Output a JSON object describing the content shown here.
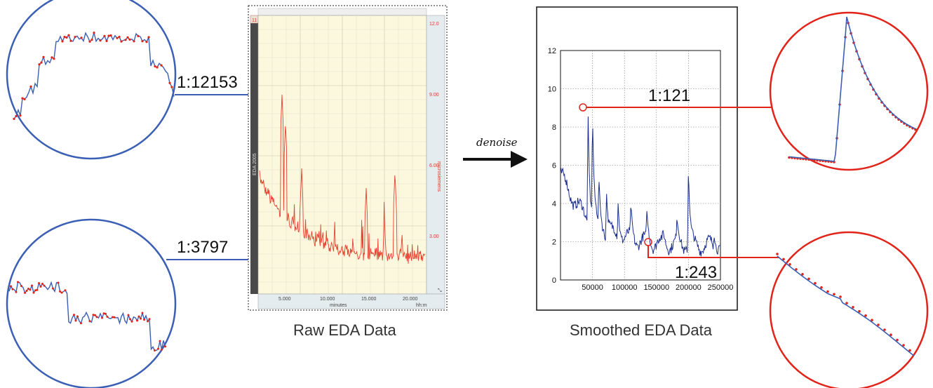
{
  "figure": {
    "left_labels": {
      "top": "1:12153",
      "bottom": "1:3797"
    },
    "right_labels": {
      "top": "1:121",
      "bottom": "1:243"
    },
    "captions": {
      "raw": "Raw EDA Data",
      "smoothed": "Smoothed EDA Data"
    },
    "arrow_label": "denoise"
  },
  "raw_panel": {
    "x_ticks": [
      "5.000",
      "10.000",
      "15.000",
      "20.000"
    ],
    "x_axis_label": "minutes",
    "y_ticks_right": [
      "12.0",
      "9.00",
      "6.00",
      "3.00"
    ],
    "side_label": "EDA 2005",
    "right_axis_label": "microsiemens",
    "x_unit": "hh:m",
    "corner_marker": "11"
  },
  "smoothed_panel": {
    "x_ticks": [
      "50000",
      "100000",
      "150000",
      "200000",
      "250000"
    ],
    "y_ticks": [
      "0",
      "2",
      "4",
      "6",
      "8",
      "10",
      "12"
    ]
  },
  "colors": {
    "blue": "#3a5fb5",
    "red": "#e2231a",
    "raw_signal": "#e8402f",
    "smooth_signal": "#1c2f8f",
    "raw_bg": "#fbf8de"
  }
}
